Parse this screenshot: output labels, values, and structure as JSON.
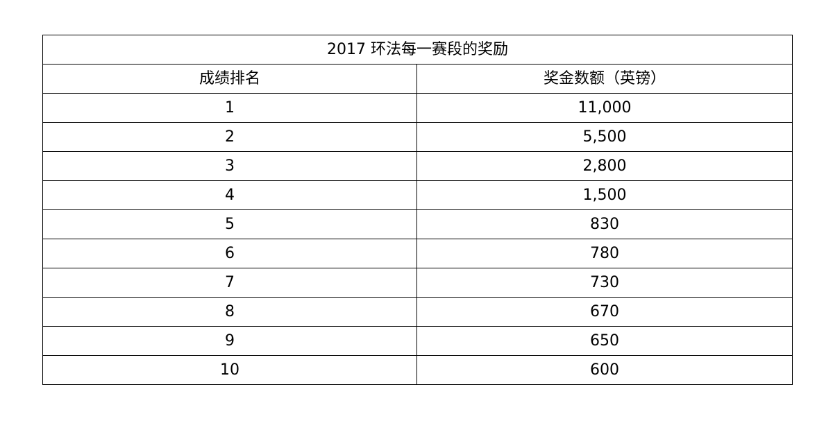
{
  "table": {
    "title": "2017 环法每一赛段的奖励",
    "headers": [
      "成绩排名",
      "奖金数额（英镑）"
    ],
    "rows": [
      [
        "1",
        "11,000"
      ],
      [
        "2",
        "5,500"
      ],
      [
        "3",
        "2,800"
      ],
      [
        "4",
        "1,500"
      ],
      [
        "5",
        "830"
      ],
      [
        "6",
        "780"
      ],
      [
        "7",
        "730"
      ],
      [
        "8",
        "670"
      ],
      [
        "9",
        "650"
      ],
      [
        "10",
        "600"
      ]
    ]
  }
}
